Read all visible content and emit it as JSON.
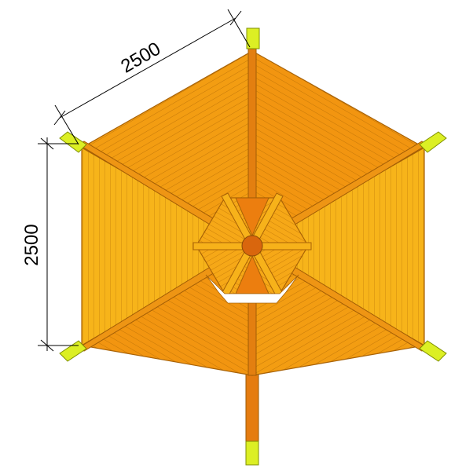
{
  "dimensions": {
    "side_length": "2500",
    "side_height": "2500"
  },
  "colors": {
    "roof_panel_light": "#f7b41a",
    "roof_panel_mid": "#f39d12",
    "roof_panel_dark": "#ef8c0c",
    "roof_lines": "#b36a05",
    "ridge_beam": "#e07a10",
    "post_caps": "#d9f020",
    "center_hub": "#d9660d",
    "dimension_lines": "#000000"
  }
}
